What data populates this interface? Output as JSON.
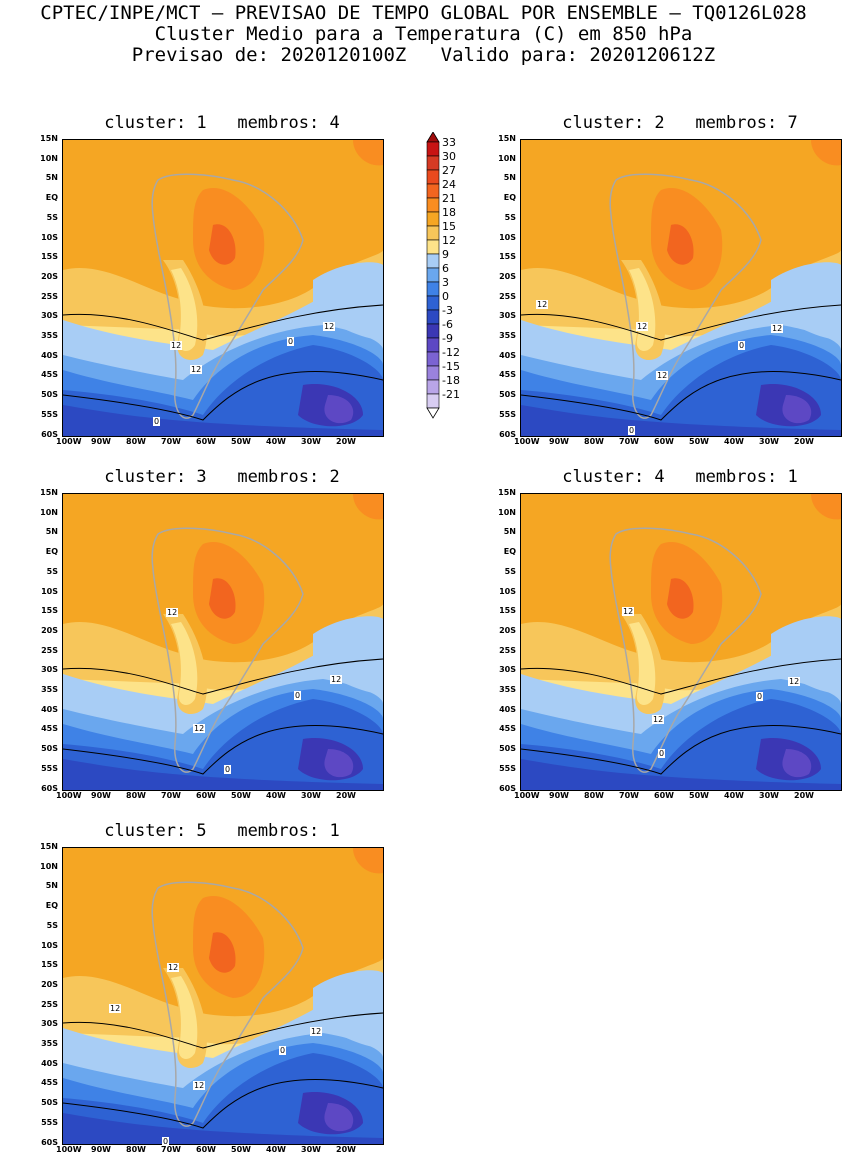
{
  "header": {
    "line1": "CPTEC/INPE/MCT – PREVISAO DE TEMPO GLOBAL POR ENSEMBLE – TQ0126L028",
    "line2": "Cluster Medio para a Temperatura (C) em 850 hPa",
    "line3": "Previsao de: 2020120100Z   Valido para: 2020120612Z"
  },
  "lat_labels": [
    "15N",
    "10N",
    "5N",
    "EQ",
    "5S",
    "10S",
    "15S",
    "20S",
    "25S",
    "30S",
    "35S",
    "40S",
    "45S",
    "50S",
    "55S",
    "60S"
  ],
  "lon_labels": [
    "100W",
    "90W",
    "80W",
    "70W",
    "60W",
    "50W",
    "40W",
    "30W",
    "20W"
  ],
  "legend": {
    "values": [
      "33",
      "30",
      "27",
      "24",
      "21",
      "18",
      "15",
      "12",
      "9",
      "6",
      "3",
      "0",
      "-3",
      "-6",
      "-9",
      "-12",
      "-15",
      "-18",
      "-21"
    ],
    "colors": [
      "#c81414",
      "#d63a24",
      "#ea4a1e",
      "#f2651f",
      "#f98d21",
      "#f5a623",
      "#f7c65a",
      "#fde389",
      "#a8cdf5",
      "#6aa7ee",
      "#3f82e6",
      "#2e62d3",
      "#2c49c2",
      "#3b37b4",
      "#5d48c4",
      "#7b63d2",
      "#9a82dd",
      "#b9a5e8",
      "#d8cdf2"
    ]
  },
  "panels": [
    {
      "title": "cluster: 1   membros: 4",
      "labels": [
        "12",
        "12",
        "12",
        "0",
        "0"
      ]
    },
    {
      "title": "cluster: 2   membros: 7",
      "labels": [
        "12",
        "12",
        "12",
        "12",
        "0",
        "0"
      ]
    },
    {
      "title": "cluster: 3   membros: 2",
      "labels": [
        "12",
        "12",
        "12",
        "0",
        "0"
      ]
    },
    {
      "title": "cluster: 4   membros: 1",
      "labels": [
        "12",
        "12",
        "12",
        "0",
        "0"
      ]
    },
    {
      "title": "cluster: 5   membros: 1",
      "labels": [
        "12",
        "12",
        "12",
        "12",
        "0",
        "0"
      ]
    }
  ]
}
